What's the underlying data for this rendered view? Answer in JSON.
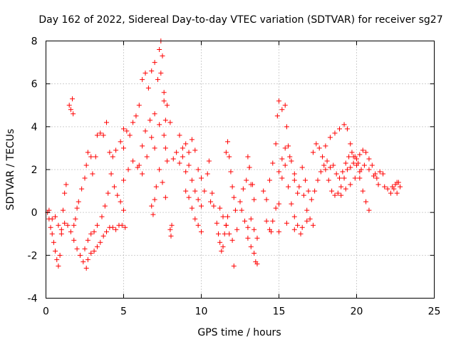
{
  "chart_data": {
    "type": "scatter",
    "title": "Day 162 of 2022, Sidereal Day-to-day VTEC variation (SDTVAR) for receiver sg27",
    "xlabel": "GPS time / hours",
    "ylabel": "SDTVAR / TECUs",
    "xlim": [
      0,
      25
    ],
    "ylim": [
      -4,
      8
    ],
    "x_ticks": [
      0,
      5,
      10,
      15,
      20,
      25
    ],
    "x_tick_labels": [
      "0",
      "5",
      "10",
      "15",
      "20",
      "25"
    ],
    "y_ticks": [
      -4,
      -2,
      0,
      2,
      4,
      6,
      8
    ],
    "y_tick_labels": [
      "-4",
      "-2",
      "0",
      "2",
      "4",
      "6",
      "8"
    ],
    "grid": true,
    "marker": "plus",
    "series_color": "#ff0000",
    "series": [
      {
        "name": "SDTVAR",
        "points": [
          [
            0.1,
            0.0
          ],
          [
            0.2,
            -0.3
          ],
          [
            0.3,
            -0.7
          ],
          [
            0.4,
            -1.0
          ],
          [
            0.5,
            -1.4
          ],
          [
            0.6,
            -1.8
          ],
          [
            0.7,
            -2.2
          ],
          [
            0.8,
            -2.5
          ],
          [
            0.9,
            -2.0
          ],
          [
            1.0,
            -1.0
          ],
          [
            1.1,
            0.1
          ],
          [
            1.2,
            0.9
          ],
          [
            1.3,
            1.3
          ],
          [
            0.2,
            0.1
          ],
          [
            0.4,
            -0.3
          ],
          [
            0.6,
            -0.2
          ],
          [
            0.8,
            -0.6
          ],
          [
            1.0,
            -0.8
          ],
          [
            1.2,
            -0.5
          ],
          [
            1.4,
            -0.6
          ],
          [
            1.6,
            -0.9
          ],
          [
            1.8,
            -1.3
          ],
          [
            2.0,
            -1.7
          ],
          [
            2.2,
            -2.0
          ],
          [
            2.4,
            -2.3
          ],
          [
            2.6,
            -2.6
          ],
          [
            1.5,
            5.0
          ],
          [
            1.6,
            4.8
          ],
          [
            1.7,
            5.3
          ],
          [
            1.75,
            4.6
          ],
          [
            1.8,
            -0.6
          ],
          [
            1.9,
            -0.3
          ],
          [
            2.0,
            0.2
          ],
          [
            2.1,
            0.5
          ],
          [
            2.3,
            1.1
          ],
          [
            2.5,
            1.6
          ],
          [
            2.6,
            2.2
          ],
          [
            2.7,
            2.8
          ],
          [
            2.9,
            2.6
          ],
          [
            3.0,
            1.8
          ],
          [
            3.2,
            2.6
          ],
          [
            3.3,
            3.6
          ],
          [
            3.5,
            3.7
          ],
          [
            3.7,
            3.6
          ],
          [
            3.9,
            4.2
          ],
          [
            2.7,
            -2.2
          ],
          [
            2.9,
            -1.9
          ],
          [
            3.1,
            -1.8
          ],
          [
            3.3,
            -1.6
          ],
          [
            3.5,
            -1.4
          ],
          [
            3.7,
            -1.1
          ],
          [
            3.9,
            -0.9
          ],
          [
            4.1,
            -0.7
          ],
          [
            4.3,
            -0.7
          ],
          [
            4.5,
            -0.8
          ],
          [
            4.7,
            -0.6
          ],
          [
            4.9,
            -0.6
          ],
          [
            5.1,
            -0.7
          ],
          [
            2.5,
            -1.7
          ],
          [
            2.7,
            -1.3
          ],
          [
            2.9,
            -1.0
          ],
          [
            3.1,
            -0.9
          ],
          [
            3.3,
            -0.6
          ],
          [
            3.6,
            -0.2
          ],
          [
            3.8,
            0.3
          ],
          [
            4.0,
            0.9
          ],
          [
            4.1,
            2.8
          ],
          [
            4.3,
            2.6
          ],
          [
            4.5,
            2.9
          ],
          [
            4.8,
            3.3
          ],
          [
            5.0,
            3.9
          ],
          [
            4.2,
            1.8
          ],
          [
            4.4,
            1.2
          ],
          [
            4.6,
            0.8
          ],
          [
            4.8,
            0.5
          ],
          [
            5.0,
            0.1
          ],
          [
            5.0,
            3.0
          ],
          [
            5.2,
            3.8
          ],
          [
            5.4,
            3.6
          ],
          [
            5.6,
            4.2
          ],
          [
            5.8,
            4.5
          ],
          [
            6.0,
            5.0
          ],
          [
            6.2,
            6.2
          ],
          [
            6.4,
            6.5
          ],
          [
            6.6,
            5.8
          ],
          [
            6.8,
            6.6
          ],
          [
            7.0,
            7.0
          ],
          [
            7.2,
            6.2
          ],
          [
            7.4,
            6.5
          ],
          [
            7.6,
            5.6
          ],
          [
            7.8,
            5.0
          ],
          [
            8.0,
            4.2
          ],
          [
            5.0,
            1.5
          ],
          [
            5.3,
            2.0
          ],
          [
            5.6,
            2.4
          ],
          [
            5.9,
            2.1
          ],
          [
            6.2,
            1.8
          ],
          [
            6.5,
            2.6
          ],
          [
            6.8,
            3.5
          ],
          [
            7.0,
            3.0
          ],
          [
            6.0,
            2.2
          ],
          [
            6.2,
            3.1
          ],
          [
            6.4,
            3.8
          ],
          [
            6.7,
            4.3
          ],
          [
            7.0,
            4.6
          ],
          [
            7.3,
            4.1
          ],
          [
            7.6,
            3.6
          ],
          [
            7.7,
            3.0
          ],
          [
            7.8,
            2.4
          ],
          [
            6.8,
            0.3
          ],
          [
            6.9,
            -0.1
          ],
          [
            7.0,
            0.6
          ],
          [
            7.1,
            1.2
          ],
          [
            7.3,
            2.0
          ],
          [
            7.5,
            1.4
          ],
          [
            7.7,
            0.7
          ],
          [
            7.3,
            7.6
          ],
          [
            7.4,
            8.0
          ],
          [
            7.5,
            7.3
          ],
          [
            7.6,
            5.2
          ],
          [
            7.7,
            4.3
          ],
          [
            8.0,
            -0.8
          ],
          [
            8.05,
            -1.1
          ],
          [
            8.1,
            -0.6
          ],
          [
            8.2,
            2.5
          ],
          [
            8.4,
            2.8
          ],
          [
            8.6,
            2.3
          ],
          [
            8.8,
            2.6
          ],
          [
            9.0,
            1.9
          ],
          [
            9.2,
            2.2
          ],
          [
            9.4,
            1.5
          ],
          [
            9.6,
            1.0
          ],
          [
            9.8,
            0.6
          ],
          [
            10.0,
            0.3
          ],
          [
            10.2,
            1.0
          ],
          [
            10.4,
            1.8
          ],
          [
            10.5,
            2.4
          ],
          [
            8.6,
            3.6
          ],
          [
            8.8,
            3.0
          ],
          [
            9.0,
            3.2
          ],
          [
            9.2,
            2.8
          ],
          [
            9.4,
            3.4
          ],
          [
            9.6,
            2.9
          ],
          [
            9.8,
            2.0
          ],
          [
            10.0,
            1.6
          ],
          [
            9.0,
            1.0
          ],
          [
            9.2,
            0.7
          ],
          [
            9.4,
            0.2
          ],
          [
            9.6,
            -0.3
          ],
          [
            9.8,
            -0.6
          ],
          [
            10.0,
            -0.9
          ],
          [
            10.6,
            0.5
          ],
          [
            10.7,
            0.9
          ],
          [
            10.8,
            0.3
          ],
          [
            11.0,
            -0.5
          ],
          [
            11.1,
            -1.0
          ],
          [
            11.2,
            -1.4
          ],
          [
            11.3,
            -1.8
          ],
          [
            11.4,
            -1.6
          ],
          [
            11.5,
            -1.0
          ],
          [
            11.6,
            -0.6
          ],
          [
            11.7,
            -0.2
          ],
          [
            11.2,
            0.2
          ],
          [
            11.4,
            -0.2
          ],
          [
            11.6,
            -0.6
          ],
          [
            11.8,
            -1.0
          ],
          [
            12.0,
            -1.3
          ],
          [
            11.6,
            2.8
          ],
          [
            11.7,
            3.3
          ],
          [
            11.8,
            2.6
          ],
          [
            11.9,
            1.9
          ],
          [
            12.0,
            1.2
          ],
          [
            12.1,
            0.7
          ],
          [
            12.2,
            0.1
          ],
          [
            12.1,
            -2.5
          ],
          [
            12.3,
            -0.8
          ],
          [
            12.5,
            0.5
          ],
          [
            12.7,
            1.1
          ],
          [
            12.9,
            1.5
          ],
          [
            13.1,
            2.1
          ],
          [
            13.3,
            1.3
          ],
          [
            13.4,
            0.6
          ],
          [
            12.6,
            0.1
          ],
          [
            12.8,
            -0.4
          ],
          [
            13.0,
            -1.2
          ],
          [
            13.2,
            -1.6
          ],
          [
            13.4,
            -1.9
          ],
          [
            13.5,
            -2.3
          ],
          [
            13.6,
            -2.4
          ],
          [
            13.0,
            -0.7
          ],
          [
            13.2,
            -0.3
          ],
          [
            13.4,
            -0.8
          ],
          [
            13.6,
            -1.2
          ],
          [
            13.0,
            2.6
          ],
          [
            13.1,
            2.1
          ],
          [
            13.2,
            1.3
          ],
          [
            14.0,
            1.0
          ],
          [
            14.2,
            0.6
          ],
          [
            14.4,
            1.5
          ],
          [
            14.6,
            2.3
          ],
          [
            14.8,
            3.2
          ],
          [
            14.9,
            4.5
          ],
          [
            15.0,
            5.2
          ],
          [
            15.2,
            4.8
          ],
          [
            15.4,
            5.0
          ],
          [
            15.5,
            4.0
          ],
          [
            15.6,
            3.1
          ],
          [
            15.8,
            2.4
          ],
          [
            16.0,
            1.5
          ],
          [
            16.2,
            0.9
          ],
          [
            14.2,
            -0.4
          ],
          [
            14.4,
            -0.8
          ],
          [
            14.6,
            -0.4
          ],
          [
            14.8,
            0.2
          ],
          [
            15.0,
            0.4
          ],
          [
            15.2,
            1.6
          ],
          [
            15.4,
            2.2
          ],
          [
            15.6,
            1.2
          ],
          [
            15.8,
            0.4
          ],
          [
            16.0,
            -0.2
          ],
          [
            16.2,
            -0.6
          ],
          [
            16.4,
            -1.0
          ],
          [
            15.0,
            1.9
          ],
          [
            15.2,
            2.5
          ],
          [
            15.4,
            3.0
          ],
          [
            15.7,
            2.6
          ],
          [
            16.0,
            1.8
          ],
          [
            16.3,
            1.2
          ],
          [
            16.6,
            0.8
          ],
          [
            14.5,
            -0.9
          ],
          [
            15.0,
            -0.9
          ],
          [
            15.5,
            -0.5
          ],
          [
            16.0,
            -0.8
          ],
          [
            16.5,
            -0.7
          ],
          [
            16.8,
            -0.4
          ],
          [
            16.5,
            2.1
          ],
          [
            16.7,
            1.5
          ],
          [
            16.9,
            1.0
          ],
          [
            17.1,
            0.6
          ],
          [
            17.3,
            1.0
          ],
          [
            17.5,
            1.5
          ],
          [
            17.7,
            1.9
          ],
          [
            17.9,
            2.2
          ],
          [
            18.1,
            2.4
          ],
          [
            18.3,
            2.1
          ],
          [
            17.2,
            2.8
          ],
          [
            17.4,
            3.2
          ],
          [
            17.6,
            3.0
          ],
          [
            17.8,
            2.6
          ],
          [
            18.0,
            2.0
          ],
          [
            18.2,
            1.5
          ],
          [
            18.4,
            1.0
          ],
          [
            18.6,
            0.8
          ],
          [
            18.8,
            0.9
          ],
          [
            19.0,
            1.2
          ],
          [
            19.2,
            1.6
          ],
          [
            19.4,
            2.0
          ],
          [
            19.6,
            2.1
          ],
          [
            19.8,
            2.3
          ],
          [
            20.0,
            2.5
          ],
          [
            20.2,
            2.7
          ],
          [
            20.4,
            2.9
          ],
          [
            20.6,
            2.8
          ],
          [
            20.8,
            2.5
          ],
          [
            21.0,
            2.2
          ],
          [
            21.2,
            1.8
          ],
          [
            21.4,
            1.3
          ],
          [
            18.0,
            3.1
          ],
          [
            18.3,
            3.5
          ],
          [
            18.6,
            3.7
          ],
          [
            18.9,
            3.9
          ],
          [
            19.2,
            4.1
          ],
          [
            19.4,
            3.9
          ],
          [
            19.6,
            3.2
          ],
          [
            19.8,
            2.6
          ],
          [
            20.0,
            2.2
          ],
          [
            20.2,
            1.6
          ],
          [
            20.4,
            1.0
          ],
          [
            20.6,
            0.5
          ],
          [
            20.8,
            0.1
          ],
          [
            18.5,
            2.2
          ],
          [
            18.7,
            1.8
          ],
          [
            18.9,
            1.6
          ],
          [
            19.1,
            1.9
          ],
          [
            19.3,
            2.3
          ],
          [
            19.5,
            2.6
          ],
          [
            19.7,
            2.8
          ],
          [
            19.9,
            2.6
          ],
          [
            20.1,
            2.3
          ],
          [
            20.3,
            2.0
          ],
          [
            19.0,
            0.8
          ],
          [
            19.3,
            1.1
          ],
          [
            19.6,
            1.3
          ],
          [
            19.9,
            1.6
          ],
          [
            20.2,
            1.9
          ],
          [
            20.5,
            2.2
          ],
          [
            20.8,
            2.0
          ],
          [
            21.1,
            1.7
          ],
          [
            17.0,
            -0.3
          ],
          [
            17.2,
            -0.6
          ],
          [
            16.8,
            0.1
          ],
          [
            21.3,
            1.6
          ],
          [
            21.5,
            1.9
          ],
          [
            21.7,
            1.8
          ],
          [
            21.8,
            1.2
          ],
          [
            22.0,
            1.1
          ],
          [
            22.2,
            0.9
          ],
          [
            22.4,
            1.1
          ],
          [
            22.5,
            1.3
          ],
          [
            22.6,
            1.4
          ],
          [
            22.7,
            1.4
          ],
          [
            22.8,
            1.2
          ],
          [
            22.6,
            0.9
          ],
          [
            22.3,
            1.2
          ]
        ]
      }
    ]
  }
}
